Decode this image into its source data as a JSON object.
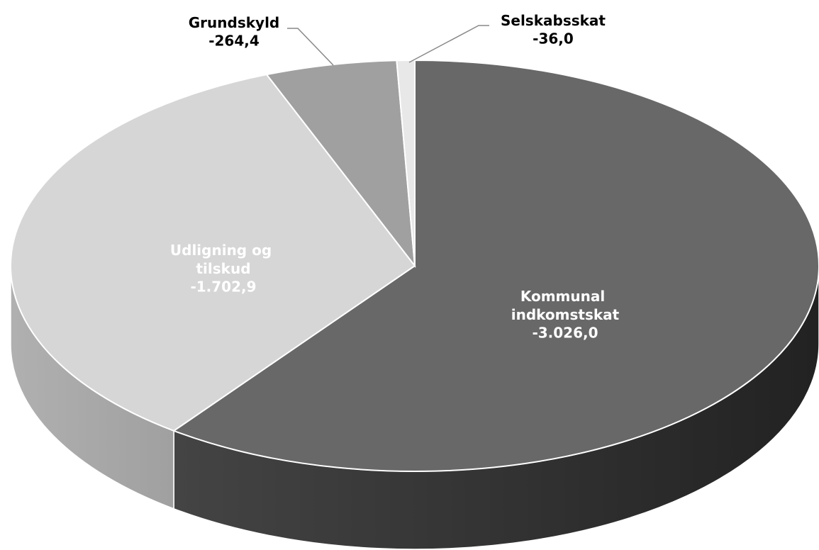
{
  "chart_data": {
    "type": "pie",
    "categories": [
      "Kommunal indkomstskat",
      "Udligning og tilskud",
      "Grundskyld",
      "Selskabsskat"
    ],
    "values": [
      -3026.0,
      -1702.9,
      -264.4,
      -36.0
    ],
    "value_labels": [
      "-3.026,0",
      "-1.702,9",
      "-264,4",
      "-36,0"
    ],
    "colors": [
      "#686868",
      "#d6d6d6",
      "#a0a0a0",
      "#e8e8e8"
    ]
  }
}
